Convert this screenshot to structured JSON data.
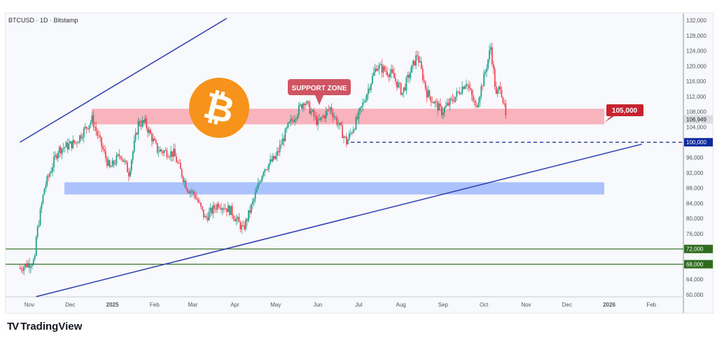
{
  "header": {
    "symbol": "BTCUSD · 1D · Bitstamp"
  },
  "branding": {
    "name": "TradingView"
  },
  "colors": {
    "up": "#089981",
    "down": "#f23645",
    "channel": "#2a3cb0",
    "resistance_zone": "#f7a1ab",
    "support_zone": "#9db8fb",
    "green_level": "#2e6b1e",
    "label_red": "#c6222f",
    "navy": "#0d2a9e",
    "bitcoin": "#f7931a"
  },
  "chart_data": {
    "type": "candlestick",
    "title": "BTCUSD · 1D · Bitstamp",
    "ylim": [
      60000,
      132000
    ],
    "y_ticks": [
      "132,000",
      "128,000",
      "124,000",
      "120,000",
      "116,000",
      "112,000",
      "108,000",
      "104,000",
      "100,000",
      "96,000",
      "92,000",
      "88,000",
      "84,000",
      "80,000",
      "76,000",
      "72,000",
      "68,000",
      "64,000",
      "60,000"
    ],
    "x_ticks": [
      "Nov",
      "Dec",
      "2025",
      "Feb",
      "Mar",
      "Apr",
      "May",
      "Jun",
      "Jul",
      "Aug",
      "Sep",
      "Oct",
      "Nov",
      "Dec",
      "2026",
      "Feb"
    ],
    "approx_closes": [
      [
        "2024-10-25",
        67000
      ],
      [
        "2024-11-05",
        69000
      ],
      [
        "2024-11-06",
        75000
      ],
      [
        "2024-11-12",
        88000
      ],
      [
        "2024-11-22",
        98000
      ],
      [
        "2024-12-05",
        100000
      ],
      [
        "2024-12-17",
        106000
      ],
      [
        "2024-12-30",
        93000
      ],
      [
        "2025-01-07",
        97000
      ],
      [
        "2025-01-13",
        92000
      ],
      [
        "2025-01-20",
        105000
      ],
      [
        "2025-01-25",
        105000
      ],
      [
        "2025-02-03",
        98000
      ],
      [
        "2025-02-15",
        97000
      ],
      [
        "2025-02-25",
        88000
      ],
      [
        "2025-03-03",
        86000
      ],
      [
        "2025-03-10",
        80000
      ],
      [
        "2025-03-20",
        84000
      ],
      [
        "2025-03-29",
        82000
      ],
      [
        "2025-04-07",
        77000
      ],
      [
        "2025-04-15",
        85000
      ],
      [
        "2025-04-22",
        93000
      ],
      [
        "2025-05-01",
        96000
      ],
      [
        "2025-05-10",
        104000
      ],
      [
        "2025-05-22",
        111000
      ],
      [
        "2025-06-01",
        105000
      ],
      [
        "2025-06-10",
        109000
      ],
      [
        "2025-06-17",
        104000
      ],
      [
        "2025-06-22",
        100000
      ],
      [
        "2025-07-01",
        107000
      ],
      [
        "2025-07-10",
        116000
      ],
      [
        "2025-07-14",
        120000
      ],
      [
        "2025-07-25",
        118000
      ],
      [
        "2025-08-02",
        113000
      ],
      [
        "2025-08-13",
        123000
      ],
      [
        "2025-08-20",
        113000
      ],
      [
        "2025-08-31",
        108000
      ],
      [
        "2025-09-10",
        112000
      ],
      [
        "2025-09-18",
        116000
      ],
      [
        "2025-09-25",
        109000
      ],
      [
        "2025-10-01",
        117000
      ],
      [
        "2025-10-06",
        125000
      ],
      [
        "2025-10-10",
        112000
      ],
      [
        "2025-10-13",
        115000
      ],
      [
        "2025-10-17",
        106949
      ]
    ],
    "last_price": "106,949",
    "levels": [
      {
        "label": "100,000",
        "price": 100000,
        "style": "dashed"
      },
      {
        "label": "72,000",
        "price": 72000
      },
      {
        "label": "68,000",
        "price": 68000
      }
    ],
    "zones": [
      {
        "from": 104700,
        "to": 108800,
        "label": "105,000"
      },
      {
        "from": 86300,
        "to": 89500
      }
    ],
    "annotations": [
      "SUPPORT ZONE",
      "105,000"
    ],
    "channel": [
      {
        "from": [
          "2024-10-25",
          100000
        ],
        "to": [
          "2025-03-26",
          132500
        ]
      },
      {
        "from": [
          "2024-11-06",
          59500
        ],
        "to": [
          "2026-01-25",
          99500
        ]
      }
    ]
  }
}
